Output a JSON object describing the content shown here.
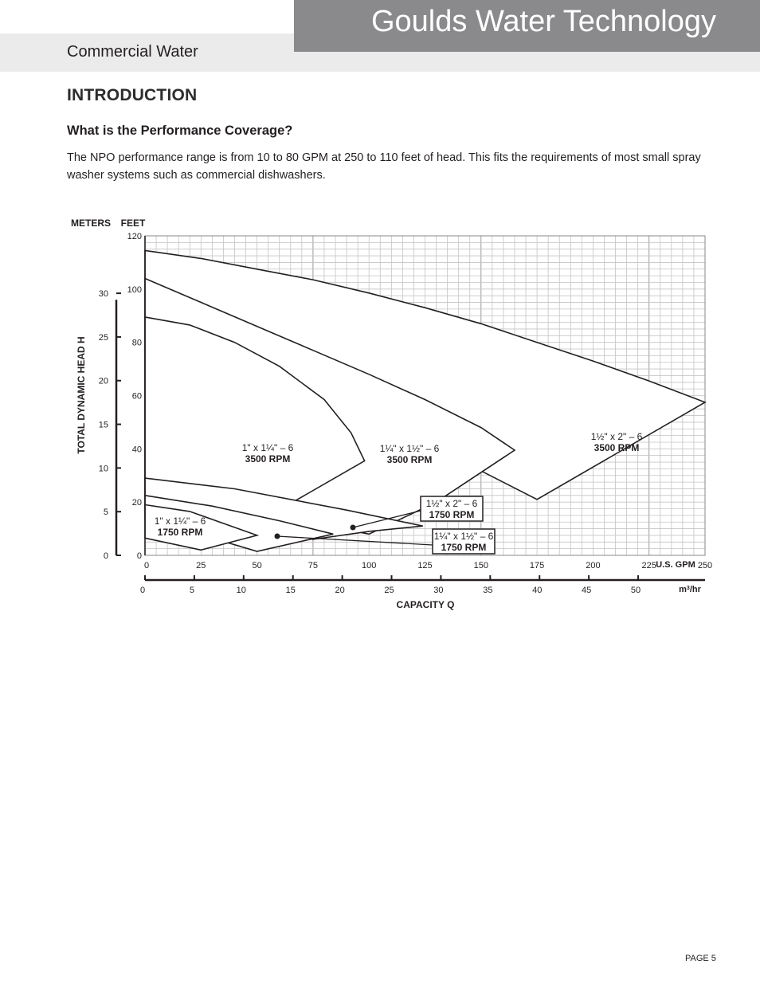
{
  "header": {
    "brand": "Goulds Water Technology",
    "section": "Commercial Water"
  },
  "content": {
    "heading": "INTRODUCTION",
    "subheading": "What is the Performance Coverage?",
    "paragraph": "The NPO performance range is from 10 to 80 GPM at 250 to 110 feet of head. This fits the requirements of most small spray washer systems such as commercial dishwashers."
  },
  "footer": {
    "page": "PAGE 5"
  },
  "chart_data": {
    "type": "area",
    "title": "",
    "xlabel": "CAPACITY Q",
    "ylabel": "TOTAL DYNAMIC HEAD H",
    "units": {
      "x_primary": "U.S. GPM",
      "x_secondary": "m³/hr",
      "y_primary": "FEET",
      "y_secondary": "METERS"
    },
    "x_range_gpm": [
      0,
      250
    ],
    "x_ticks_gpm": [
      "0",
      "25",
      "50",
      "75",
      "100",
      "125",
      "150",
      "175",
      "200",
      "225",
      "250"
    ],
    "x_ticks_m3hr": [
      "0",
      "5",
      "10",
      "15",
      "20",
      "25",
      "30",
      "35",
      "40",
      "45",
      "50"
    ],
    "y_range_ft": [
      0,
      120
    ],
    "y_ticks_ft": [
      "0",
      "20",
      "40",
      "60",
      "80",
      "100",
      "120"
    ],
    "y_ticks_m": [
      "0",
      "5",
      "10",
      "15",
      "20",
      "25",
      "30"
    ],
    "grid": true,
    "series": [
      {
        "name_line1": "1½\" x 2\" – 6",
        "name_line2": "3500 RPM",
        "boxed": false,
        "outline_gpm_ft": [
          [
            0,
            114.5
          ],
          [
            25,
            111.5
          ],
          [
            50,
            107.5
          ],
          [
            75,
            103.5
          ],
          [
            100,
            98.5
          ],
          [
            125,
            93
          ],
          [
            150,
            87
          ],
          [
            175,
            80
          ],
          [
            200,
            73
          ],
          [
            225,
            65.5
          ],
          [
            250,
            57.5
          ],
          [
            175,
            21
          ],
          [
            140,
            36
          ],
          [
            100,
            24
          ],
          [
            0,
            22
          ]
        ]
      },
      {
        "name_line1": "1¼\" x 1½\" – 6",
        "name_line2": "3500 RPM",
        "boxed": false,
        "outline_gpm_ft": [
          [
            0,
            104
          ],
          [
            25,
            95
          ],
          [
            50,
            86
          ],
          [
            75,
            77
          ],
          [
            100,
            68
          ],
          [
            125,
            58.5
          ],
          [
            150,
            48
          ],
          [
            165,
            39.5
          ],
          [
            130,
            20
          ],
          [
            100,
            8
          ],
          [
            0,
            24
          ]
        ]
      },
      {
        "name_line1": "1\" x 1¼\" – 6",
        "name_line2": "3500 RPM",
        "boxed": false,
        "outline_gpm_ft": [
          [
            0,
            89.5
          ],
          [
            20,
            86.5
          ],
          [
            40,
            80
          ],
          [
            60,
            71
          ],
          [
            80,
            58.5
          ],
          [
            92,
            46
          ],
          [
            98,
            35.5
          ],
          [
            66,
            20
          ],
          [
            0,
            28
          ]
        ]
      },
      {
        "name_line1": "1½\" x 2\" – 6",
        "name_line2": "1750 RPM",
        "boxed": true,
        "outline_gpm_ft": [
          [
            0,
            29
          ],
          [
            40,
            25
          ],
          [
            90,
            17
          ],
          [
            124,
            11
          ],
          [
            100,
            9
          ],
          [
            75,
            6
          ],
          [
            0,
            18
          ]
        ]
      },
      {
        "name_line1": "1¼\" x 1½\" – 6",
        "name_line2": "1750 RPM",
        "boxed": true,
        "outline_gpm_ft": [
          [
            0,
            22.5
          ],
          [
            30,
            18.5
          ],
          [
            60,
            13
          ],
          [
            84,
            8
          ],
          [
            50,
            1.5
          ],
          [
            0,
            14
          ]
        ]
      },
      {
        "name_line1": "1\" x 1¼\" – 6",
        "name_line2": "1750 RPM",
        "boxed": false,
        "outline_gpm_ft": [
          [
            0,
            19
          ],
          [
            20,
            16.5
          ],
          [
            35,
            12
          ],
          [
            50,
            7.5
          ],
          [
            25,
            2
          ],
          [
            0,
            6.5
          ]
        ]
      }
    ]
  }
}
